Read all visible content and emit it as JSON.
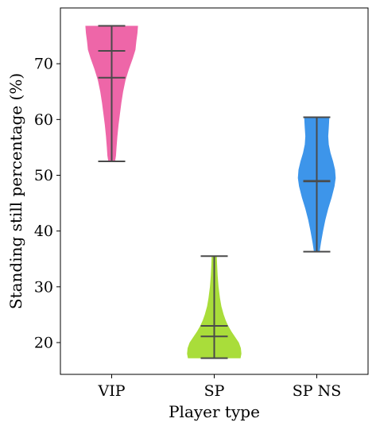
{
  "chart_data": {
    "type": "violin",
    "xlabel": "Player type",
    "ylabel": "Standing still percentage (%)",
    "categories": [
      "VIP",
      "SP",
      "SP NS"
    ],
    "ylim": [
      14.3,
      80.0
    ],
    "yticks": [
      20,
      30,
      40,
      50,
      60,
      70
    ],
    "grid": false,
    "series": [
      {
        "category": "VIP",
        "color": "#ee66a8",
        "min": 52.5,
        "max": 76.8,
        "lines": [
          72.3,
          67.5
        ],
        "profile": [
          [
            52.5,
            0.12
          ],
          [
            53.5,
            0.15
          ],
          [
            55,
            0.17
          ],
          [
            57,
            0.2
          ],
          [
            59,
            0.24
          ],
          [
            61,
            0.29
          ],
          [
            63,
            0.34
          ],
          [
            65,
            0.4
          ],
          [
            67,
            0.48
          ],
          [
            69,
            0.6
          ],
          [
            71,
            0.74
          ],
          [
            72.5,
            0.83
          ],
          [
            74,
            0.86
          ],
          [
            75.5,
            0.9
          ],
          [
            76.8,
            0.92
          ]
        ]
      },
      {
        "category": "SP",
        "color": "#a9dd3a",
        "min": 17.2,
        "max": 35.5,
        "lines": [
          23.0,
          21.1
        ],
        "profile": [
          [
            17.2,
            0.92
          ],
          [
            18,
            0.95
          ],
          [
            19,
            0.93
          ],
          [
            20,
            0.86
          ],
          [
            21,
            0.73
          ],
          [
            22,
            0.6
          ],
          [
            23,
            0.49
          ],
          [
            24,
            0.4
          ],
          [
            25,
            0.33
          ],
          [
            26.5,
            0.25
          ],
          [
            28,
            0.2
          ],
          [
            30,
            0.15
          ],
          [
            32,
            0.12
          ],
          [
            34,
            0.1
          ],
          [
            35.5,
            0.09
          ]
        ]
      },
      {
        "category": "SP NS",
        "color": "#3d95ea",
        "min": 36.3,
        "max": 60.4,
        "lines": [
          48.9,
          49.0
        ],
        "profile": [
          [
            36.3,
            0.1
          ],
          [
            38,
            0.15
          ],
          [
            40,
            0.22
          ],
          [
            42,
            0.3
          ],
          [
            44,
            0.4
          ],
          [
            46,
            0.52
          ],
          [
            48,
            0.62
          ],
          [
            49.5,
            0.66
          ],
          [
            51,
            0.64
          ],
          [
            52.5,
            0.57
          ],
          [
            54,
            0.48
          ],
          [
            55.5,
            0.42
          ],
          [
            57,
            0.4
          ],
          [
            58.5,
            0.42
          ],
          [
            59.5,
            0.43
          ],
          [
            60.4,
            0.44
          ]
        ]
      }
    ]
  }
}
